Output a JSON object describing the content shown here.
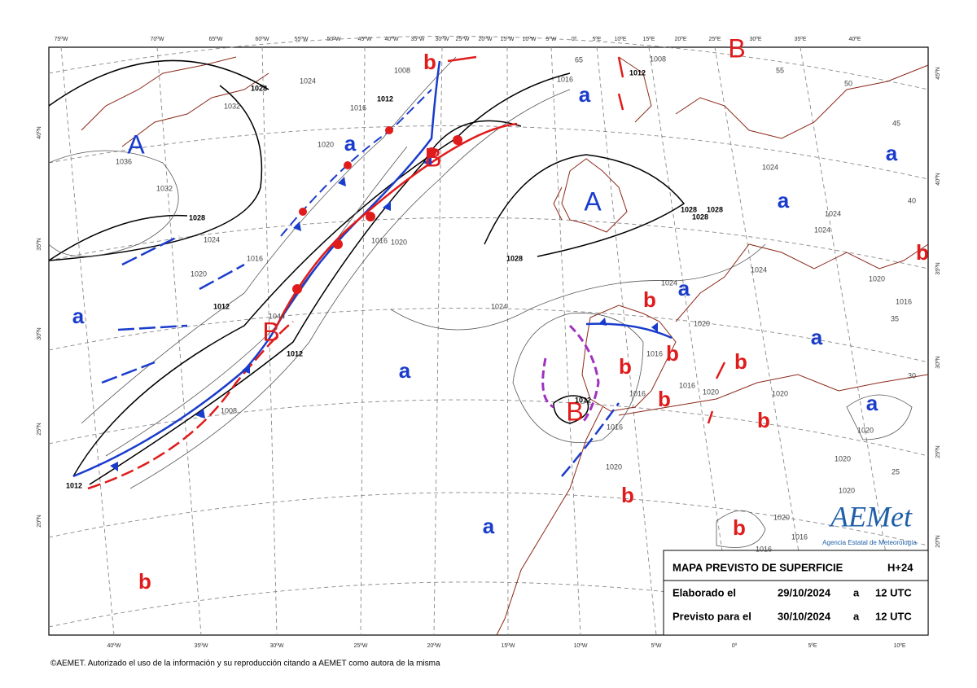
{
  "map": {
    "top_longitudes": [
      "75ºW",
      "70ºW",
      "65ºW",
      "60ºW",
      "55ºW",
      "50ºW",
      "45ºW",
      "40ºW",
      "35ºW",
      "30ºW",
      "25ºW",
      "20ºW",
      "15ºW",
      "10ºW",
      "5ºW",
      "0º",
      "5ºE",
      "10ºE",
      "15ºE",
      "20ºE",
      "25ºE",
      "30ºE",
      "35ºE",
      "40ºE"
    ],
    "bottom_longitudes": [
      "40ºW",
      "35ºW",
      "30ºW",
      "25ºW",
      "20ºW",
      "15ºW",
      "10ºW",
      "5ºW",
      "0º",
      "5ºE",
      "10ºE"
    ],
    "left_latitudes": [
      "40ºN",
      "35ºN",
      "30ºN",
      "25ºN",
      "20ºN"
    ],
    "right_latitudes": [
      "45ºN",
      "40ºN",
      "35ºN",
      "30ºN",
      "25ºN",
      "20ºN"
    ],
    "pressure_centers": [
      "A",
      "A",
      "B",
      "B",
      "B",
      "B",
      "a",
      "a",
      "a",
      "a",
      "a",
      "a",
      "a",
      "a",
      "a",
      "a",
      "b",
      "b",
      "b",
      "b",
      "b",
      "b",
      "b",
      "b",
      "b",
      "b",
      "b"
    ],
    "isobar_labels": [
      "1028",
      "1024",
      "1032",
      "1036",
      "1032",
      "1028",
      "1024",
      "1020",
      "1016",
      "1012",
      "1008",
      "1012",
      "1016",
      "1020",
      "1016",
      "1020",
      "1028",
      "1028",
      "1028",
      "1028",
      "1024",
      "1024",
      "1024",
      "1024",
      "1024",
      "1024",
      "1020",
      "1016",
      "1012",
      "1008",
      "1016",
      "1020",
      "1020",
      "1020",
      "1016",
      "1016",
      "1016",
      "1016",
      "1012",
      "1020",
      "1020",
      "1020",
      "1020",
      "1020",
      "1016",
      "1016",
      "1012",
      "1044",
      "1008",
      "1012",
      "50",
      "55",
      "65",
      "45",
      "40",
      "35",
      "30",
      "25"
    ]
  },
  "info_box": {
    "title": "MAPA PREVISTO DE SUPERFICIE",
    "lead_time": "H+24",
    "rows": [
      [
        "Elaborado el",
        "29/10/2024",
        "a",
        "12 UTC"
      ],
      [
        "Previsto para el",
        "30/10/2024",
        "a",
        "12 UTC"
      ]
    ]
  },
  "logo": {
    "name": "AEMet",
    "subtitle": "Agencia Estatal de Meteorología"
  },
  "footer": "©AEMET. Autorizado el uso de la información y su reproducción citando a AEMET como autora de la misma"
}
